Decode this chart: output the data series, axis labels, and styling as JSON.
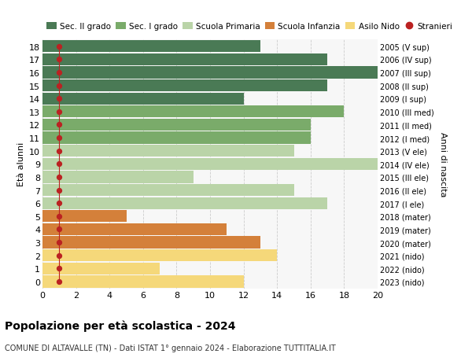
{
  "ages": [
    18,
    17,
    16,
    15,
    14,
    13,
    12,
    11,
    10,
    9,
    8,
    7,
    6,
    5,
    4,
    3,
    2,
    1,
    0
  ],
  "years": [
    "2005 (V sup)",
    "2006 (IV sup)",
    "2007 (III sup)",
    "2008 (II sup)",
    "2009 (I sup)",
    "2010 (III med)",
    "2011 (II med)",
    "2012 (I med)",
    "2013 (V ele)",
    "2014 (IV ele)",
    "2015 (III ele)",
    "2016 (II ele)",
    "2017 (I ele)",
    "2018 (mater)",
    "2019 (mater)",
    "2020 (mater)",
    "2021 (nido)",
    "2022 (nido)",
    "2023 (nido)"
  ],
  "values": [
    13,
    17,
    20,
    17,
    12,
    18,
    16,
    16,
    15,
    20,
    9,
    15,
    17,
    5,
    11,
    13,
    14,
    7,
    12
  ],
  "stranieri_x": [
    1,
    1,
    1,
    1,
    1,
    1,
    1,
    1,
    1,
    1,
    1,
    1,
    1,
    1,
    1,
    1,
    1,
    1,
    1
  ],
  "colors": {
    "sec2": "#4a7a55",
    "sec1": "#7aab6a",
    "primaria": "#bad4a8",
    "infanzia": "#d4803a",
    "nido": "#f5d87a",
    "stranieri": "#bb2222"
  },
  "bar_colors": [
    "sec2",
    "sec2",
    "sec2",
    "sec2",
    "sec2",
    "sec1",
    "sec1",
    "sec1",
    "primaria",
    "primaria",
    "primaria",
    "primaria",
    "primaria",
    "infanzia",
    "infanzia",
    "infanzia",
    "nido",
    "nido",
    "nido"
  ],
  "ylabel": "Età alunni",
  "ylabel2": "Anni di nascita",
  "title": "Popolazione per età scolastica - 2024",
  "subtitle": "COMUNE DI ALTAVALLE (TN) - Dati ISTAT 1° gennaio 2024 - Elaborazione TUTTITALIA.IT",
  "xlim": [
    0,
    20
  ],
  "xticks": [
    0,
    2,
    4,
    6,
    8,
    10,
    12,
    14,
    16,
    18,
    20
  ],
  "legend_labels": [
    "Sec. II grado",
    "Sec. I grado",
    "Scuola Primaria",
    "Scuola Infanzia",
    "Asilo Nido",
    "Stranieri"
  ],
  "legend_colors": [
    "#4a7a55",
    "#7aab6a",
    "#bad4a8",
    "#d4803a",
    "#f5d87a",
    "#bb2222"
  ],
  "bg_color": "#ffffff",
  "plot_bg": "#f7f7f7",
  "grid_color": "#cccccc"
}
